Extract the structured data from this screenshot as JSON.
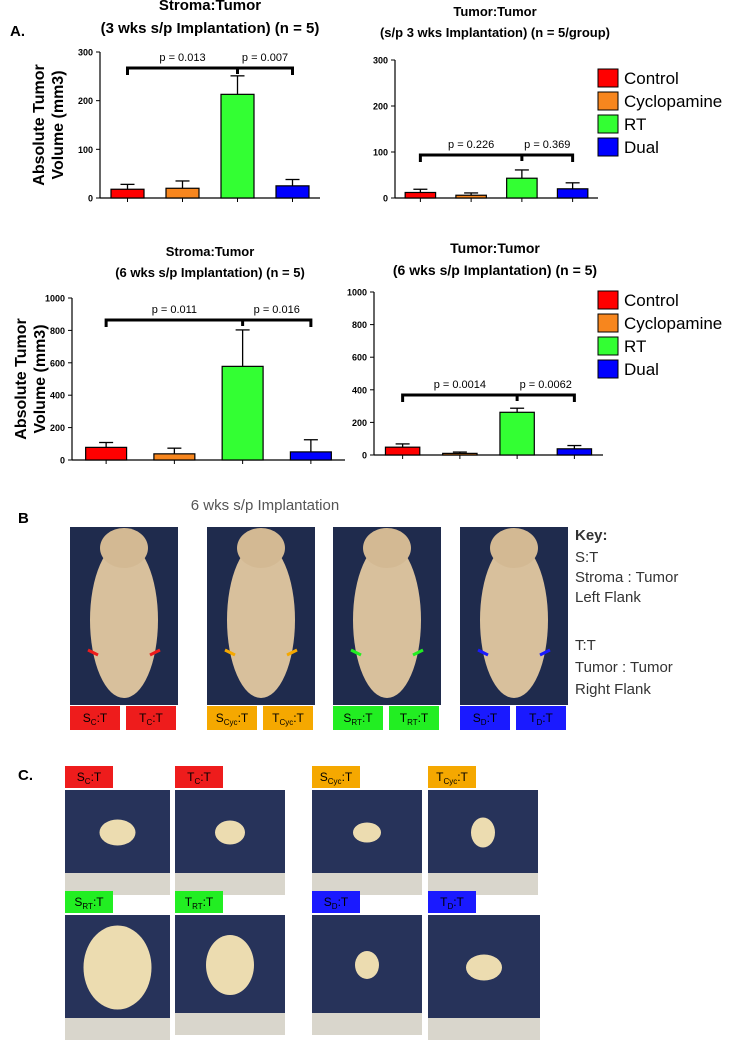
{
  "chart_data": [
    {
      "type": "bar",
      "title": [
        "Stroma:Tumor",
        "(3 wks s/p Implantation) (n = 5)"
      ],
      "ylabel": [
        "Absolute Tumor",
        "Volume (mm3)"
      ],
      "values": [
        18,
        20,
        213,
        25
      ],
      "errors": [
        10,
        15,
        38,
        13
      ],
      "colors": [
        "#ff0000",
        "#f7861e",
        "#33ff33",
        "#0000ff"
      ],
      "ylim": [
        0,
        300
      ],
      "yticks": [
        0,
        100,
        200,
        300
      ],
      "annotations": [
        "p = 0.013",
        "p = 0.007"
      ]
    },
    {
      "type": "bar",
      "title": [
        "Tumor:Tumor",
        "(s/p 3 wks Implantation) (n = 5/group)"
      ],
      "categories": [
        "Control",
        "Cyclopamine",
        "RT",
        "Dual"
      ],
      "values": [
        12,
        6,
        43,
        20
      ],
      "errors": [
        7,
        5,
        18,
        13
      ],
      "colors": [
        "#ff0000",
        "#f7861e",
        "#33ff33",
        "#0000ff"
      ],
      "ylim": [
        0,
        300
      ],
      "yticks": [
        0,
        100,
        200,
        300
      ],
      "annotations": [
        "p = 0.226",
        "p = 0.369"
      ],
      "legend": "right"
    },
    {
      "type": "bar",
      "title": [
        "Stroma:Tumor",
        "(6 wks s/p Implantation) (n = 5)"
      ],
      "ylabel": [
        "Absolute Tumor",
        "Volume (mm3)"
      ],
      "values": [
        78,
        38,
        578,
        50
      ],
      "errors": [
        30,
        35,
        225,
        75
      ],
      "colors": [
        "#ff0000",
        "#f7861e",
        "#33ff33",
        "#0000ff"
      ],
      "ylim": [
        0,
        1000
      ],
      "yticks": [
        0,
        200,
        400,
        600,
        800,
        1000
      ],
      "annotations": [
        "p = 0.011",
        "p = 0.016"
      ]
    },
    {
      "type": "bar",
      "title": [
        "Tumor:Tumor",
        "(6 wks s/p Implantation) (n = 5)"
      ],
      "categories": [
        "Control",
        "Cyclopamine",
        "RT",
        "Dual"
      ],
      "values": [
        48,
        10,
        262,
        38
      ],
      "errors": [
        20,
        8,
        25,
        20
      ],
      "colors": [
        "#ff0000",
        "#f7861e",
        "#33ff33",
        "#0000ff"
      ],
      "ylim": [
        0,
        1000
      ],
      "yticks": [
        0,
        200,
        400,
        600,
        800,
        1000
      ],
      "annotations": [
        "p = 0.0014",
        "p = 0.0062"
      ],
      "legend": "right"
    }
  ],
  "panel_labels": [
    "A.",
    "B",
    "C."
  ],
  "panel_b": {
    "title": "6 wks s/p Implantation",
    "mice": [
      {
        "labels": [
          {
            "main": "S",
            "sub": "C",
            "rest": ":T",
            "color": "#ee1c1c"
          },
          {
            "main": "T",
            "sub": "C",
            "rest": ":T",
            "color": "#ee1c1c"
          }
        ]
      },
      {
        "labels": [
          {
            "main": "S",
            "sub": "Cyc",
            "rest": ":T",
            "color": "#f5a800"
          },
          {
            "main": "T",
            "sub": "Cyc",
            "rest": ":T",
            "color": "#f5a800"
          }
        ]
      },
      {
        "labels": [
          {
            "main": "S",
            "sub": "RT",
            "rest": ":T",
            "color": "#22ee22"
          },
          {
            "main": "T",
            "sub": "RT",
            "rest": ":T",
            "color": "#22ee22"
          }
        ]
      },
      {
        "labels": [
          {
            "main": "S",
            "sub": "D",
            "rest": ":T",
            "color": "#1a1aff"
          },
          {
            "main": "T",
            "sub": "D",
            "rest": ":T",
            "color": "#1a1aff"
          }
        ]
      }
    ],
    "key": [
      "Key:",
      "S:T",
      "Stroma : Tumor",
      "Left Flank",
      "T:T",
      "Tumor : Tumor",
      "Right Flank"
    ]
  },
  "panel_c": {
    "tumors": [
      {
        "main": "S",
        "sub": "C",
        "rest": ":T",
        "color": "#ee1c1c"
      },
      {
        "main": "T",
        "sub": "C",
        "rest": ":T",
        "color": "#ee1c1c"
      },
      {
        "main": "S",
        "sub": "Cyc",
        "rest": ":T",
        "color": "#f5a800"
      },
      {
        "main": "T",
        "sub": "Cyc",
        "rest": ":T",
        "color": "#f5a800"
      },
      {
        "main": "S",
        "sub": "RT",
        "rest": ":T",
        "color": "#22ee22"
      },
      {
        "main": "T",
        "sub": "RT",
        "rest": ":T",
        "color": "#22ee22"
      },
      {
        "main": "S",
        "sub": "D",
        "rest": ":T",
        "color": "#1a1aff"
      },
      {
        "main": "T",
        "sub": "D",
        "rest": ":T",
        "color": "#1a1aff"
      }
    ]
  }
}
